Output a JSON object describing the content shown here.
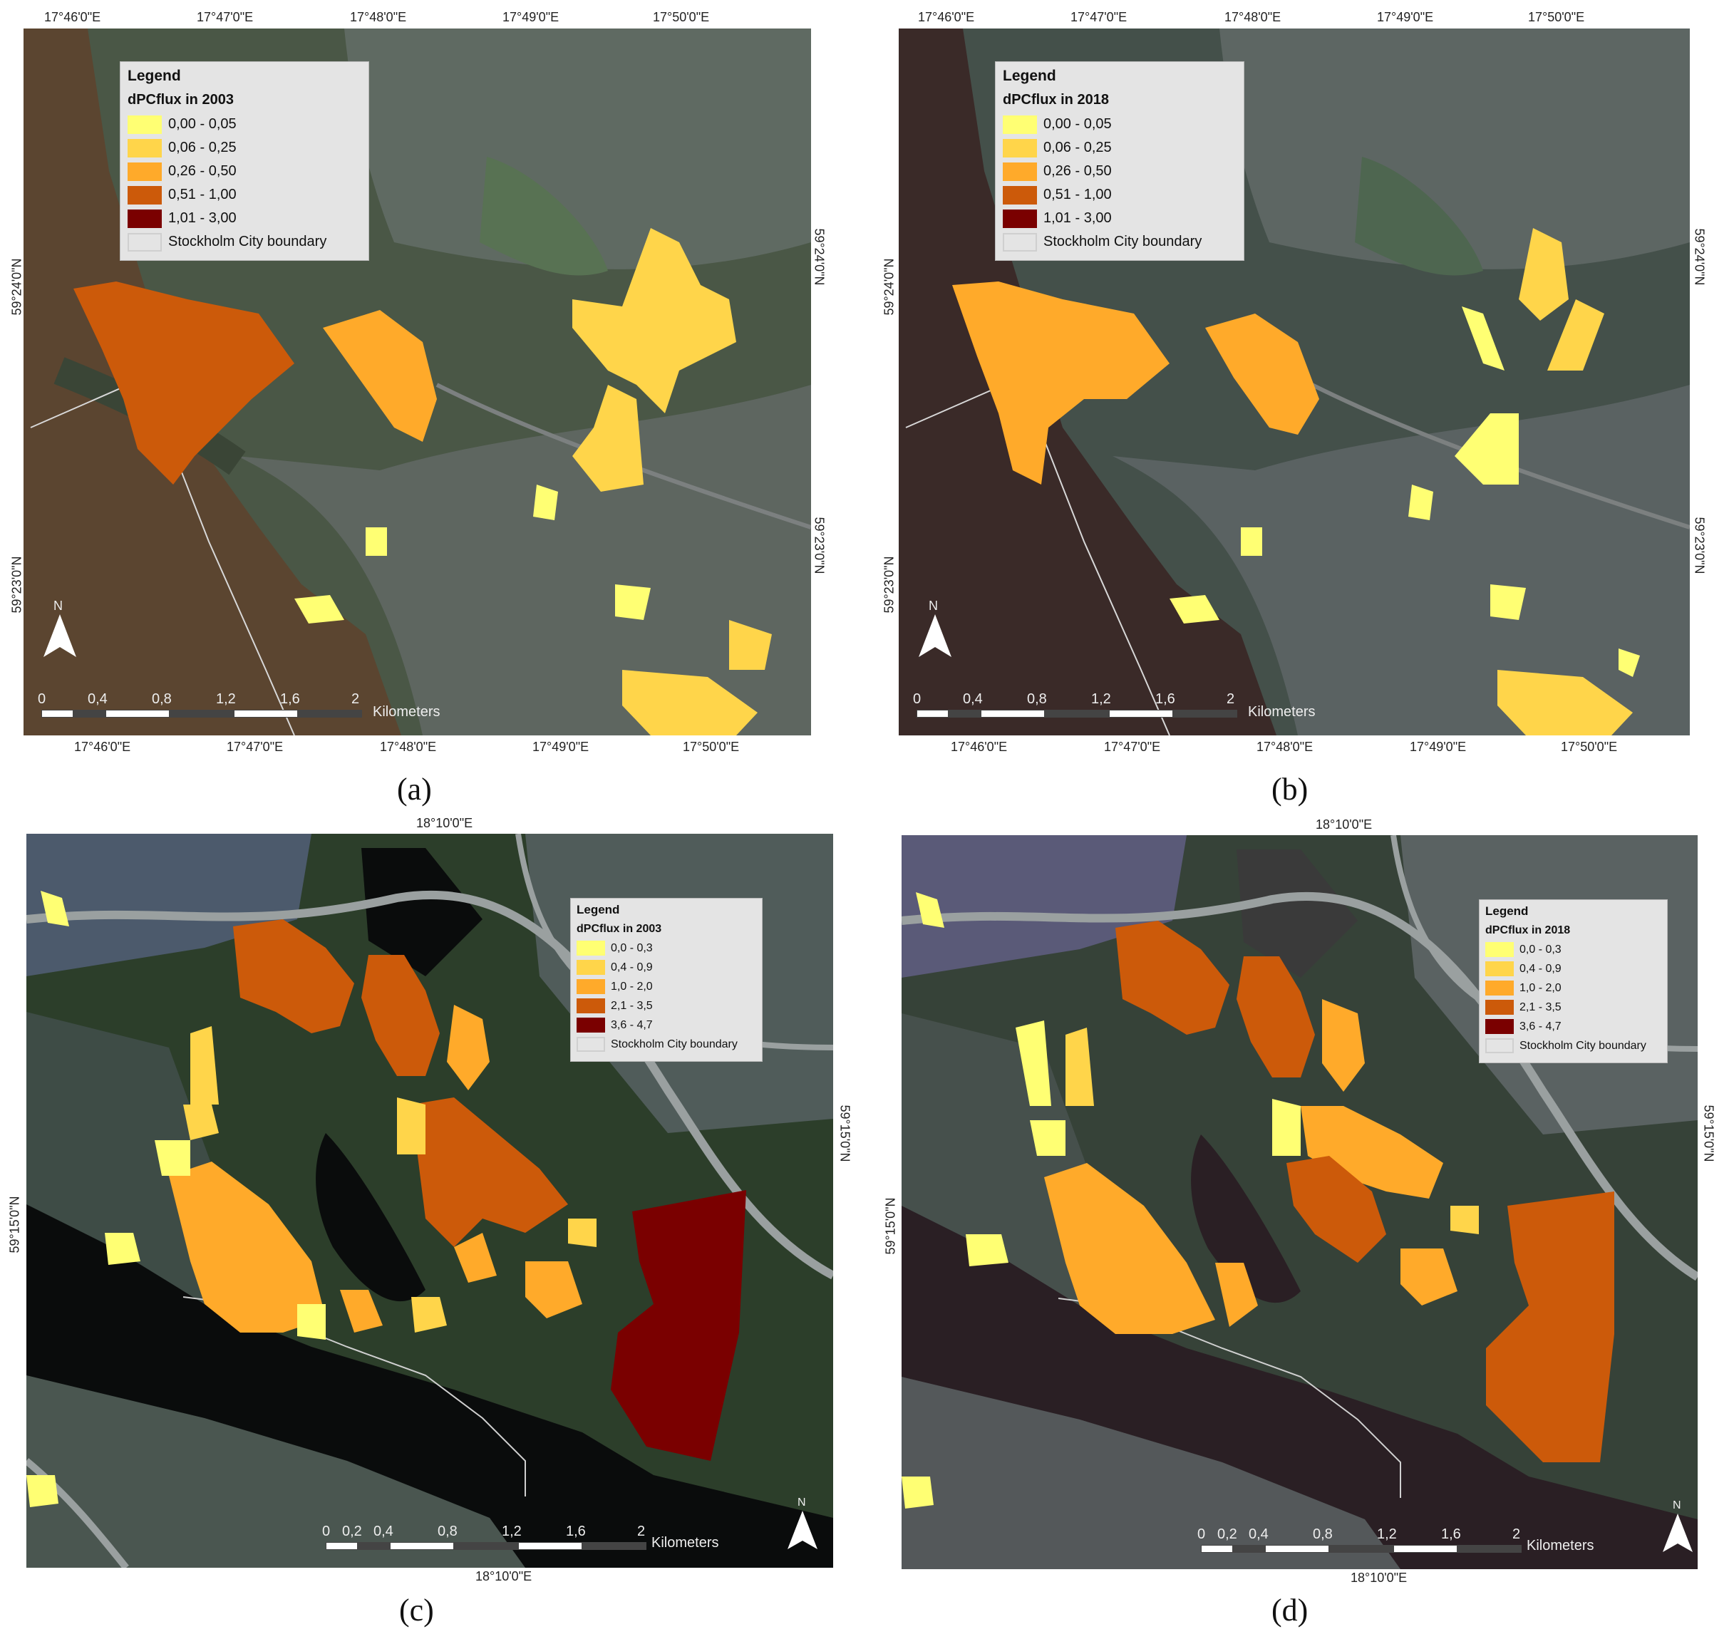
{
  "panels": [
    {
      "id": "a",
      "caption": "(a)",
      "legend": {
        "title": "Legend",
        "subtitle": "dPCflux in 2003",
        "classes": [
          {
            "label": "0,00 - 0,05",
            "color": "#ffff73"
          },
          {
            "label": "0,06 - 0,25",
            "color": "#ffd54a"
          },
          {
            "label": "0,26 - 0,50",
            "color": "#ffaa2a"
          },
          {
            "label": "0,51 - 1,00",
            "color": "#cc5a0a"
          },
          {
            "label": "1,01 - 3,00",
            "color": "#7a0000"
          }
        ],
        "boundary_label": "Stockholm City boundary"
      },
      "top_ticks": [
        "17°46'0\"E",
        "17°47'0\"E",
        "17°48'0\"E",
        "17°49'0\"E",
        "17°50'0\"E"
      ],
      "bottom_ticks": [
        "17°46'0\"E",
        "17°47'0\"E",
        "17°48'0\"E",
        "17°49'0\"E",
        "17°50'0\"E"
      ],
      "left_ticks": [
        "59°24'0\"N",
        "59°23'0\"N"
      ],
      "right_ticks": [
        "59°24'0\"N",
        "59°23'0\"N"
      ],
      "scale": {
        "labels": [
          "0",
          "0,4",
          "0,8",
          "1,2",
          "1,6",
          "2"
        ],
        "unit": "Kilometers"
      },
      "north_label": "N"
    },
    {
      "id": "b",
      "caption": "(b)",
      "legend": {
        "title": "Legend",
        "subtitle": "dPCflux in 2018",
        "classes": [
          {
            "label": "0,00 - 0,05",
            "color": "#ffff73"
          },
          {
            "label": "0,06 - 0,25",
            "color": "#ffd54a"
          },
          {
            "label": "0,26 - 0,50",
            "color": "#ffaa2a"
          },
          {
            "label": "0,51 - 1,00",
            "color": "#cc5a0a"
          },
          {
            "label": "1,01 - 3,00",
            "color": "#7a0000"
          }
        ],
        "boundary_label": "Stockholm City boundary"
      },
      "top_ticks": [
        "17°46'0\"E",
        "17°47'0\"E",
        "17°48'0\"E",
        "17°49'0\"E",
        "17°50'0\"E"
      ],
      "bottom_ticks": [
        "17°46'0\"E",
        "17°47'0\"E",
        "17°48'0\"E",
        "17°49'0\"E",
        "17°50'0\"E"
      ],
      "left_ticks": [
        "59°24'0\"N",
        "59°23'0\"N"
      ],
      "right_ticks": [
        "59°24'0\"N",
        "59°23'0\"N"
      ],
      "scale": {
        "labels": [
          "0",
          "0,4",
          "0,8",
          "1,2",
          "1,6",
          "2"
        ],
        "unit": "Kilometers"
      },
      "north_label": "N"
    },
    {
      "id": "c",
      "caption": "(c)",
      "legend": {
        "title": "Legend",
        "subtitle": "dPCflux in 2003",
        "classes": [
          {
            "label": "0,0 - 0,3",
            "color": "#ffff73"
          },
          {
            "label": "0,4 - 0,9",
            "color": "#ffd54a"
          },
          {
            "label": "1,0 - 2,0",
            "color": "#ffaa2a"
          },
          {
            "label": "2,1 - 3,5",
            "color": "#cc5a0a"
          },
          {
            "label": "3,6 - 4,7",
            "color": "#7a0000"
          }
        ],
        "boundary_label": "Stockholm City boundary"
      },
      "top_ticks": [
        "18°10'0\"E"
      ],
      "bottom_ticks": [
        "18°10'0\"E"
      ],
      "left_ticks": [
        "59°15'0\"N"
      ],
      "right_ticks": [
        "59°15'0\"N"
      ],
      "scale": {
        "labels": [
          "0",
          "0,2",
          "0,4",
          "0,8",
          "1,2",
          "1,6",
          "2"
        ],
        "unit": "Kilometers"
      },
      "north_label": "N"
    },
    {
      "id": "d",
      "caption": "(d)",
      "legend": {
        "title": "Legend",
        "subtitle": "dPCflux in 2018",
        "classes": [
          {
            "label": "0,0 - 0,3",
            "color": "#ffff73"
          },
          {
            "label": "0,4 - 0,9",
            "color": "#ffd54a"
          },
          {
            "label": "1,0 - 2,0",
            "color": "#ffaa2a"
          },
          {
            "label": "2,1 - 3,5",
            "color": "#cc5a0a"
          },
          {
            "label": "3,6 - 4,7",
            "color": "#7a0000"
          }
        ],
        "boundary_label": "Stockholm City boundary"
      },
      "top_ticks": [
        "18°10'0\"E"
      ],
      "bottom_ticks": [
        "18°10'0\"E"
      ],
      "left_ticks": [
        "59°15'0\"N"
      ],
      "right_ticks": [
        "59°15'0\"N"
      ],
      "scale": {
        "labels": [
          "0",
          "0,2",
          "0,4",
          "0,8",
          "1,2",
          "1,6",
          "2"
        ],
        "unit": "Kilometers"
      },
      "north_label": "N"
    }
  ]
}
